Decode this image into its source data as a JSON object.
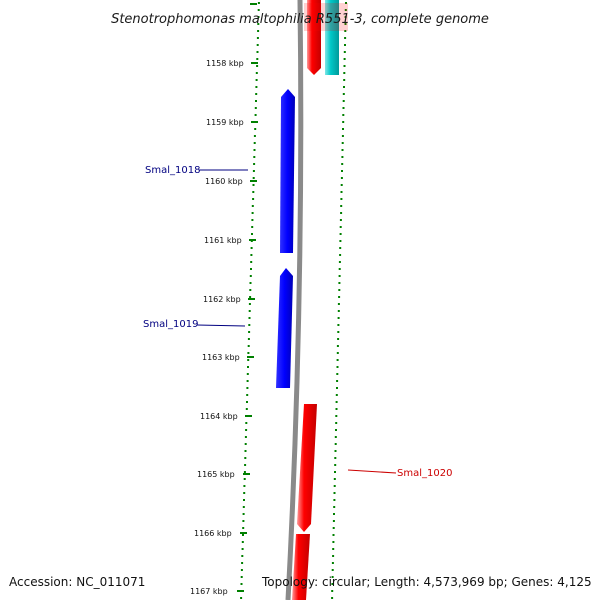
{
  "title": "Stenotrophomonas maltophilia R551-3, complete genome",
  "colors": {
    "forward_gene": "#0000ff",
    "reverse_gene": "#ff0000",
    "other_gene": "#00c8c8",
    "backbone": "#888888",
    "gc_dots": "#008000",
    "forward_label": "#000080",
    "reverse_label": "#cc0000"
  },
  "scale_ticks": [
    {
      "label": "1158 kbp",
      "value": 1158
    },
    {
      "label": "1159 kbp",
      "value": 1159
    },
    {
      "label": "1160 kbp",
      "value": 1160
    },
    {
      "label": "1161 kbp",
      "value": 1161
    },
    {
      "label": "1162 kbp",
      "value": 1162
    },
    {
      "label": "1163 kbp",
      "value": 1163
    },
    {
      "label": "1164 kbp",
      "value": 1164
    },
    {
      "label": "1165 kbp",
      "value": 1165
    },
    {
      "label": "1166 kbp",
      "value": 1166
    },
    {
      "label": "1167 kbp",
      "value": 1167
    }
  ],
  "genes": [
    {
      "name": "Smal_1018",
      "strand": "forward",
      "start_kbp": 1158.45,
      "end_kbp": 1161.2
    },
    {
      "name": "Smal_1019",
      "strand": "forward",
      "start_kbp": 1161.5,
      "end_kbp": 1163.5
    },
    {
      "name": "Smal_1020",
      "strand": "reverse",
      "start_kbp": 1163.8,
      "end_kbp": 1166.5
    }
  ],
  "footer": {
    "accession": "Accession: NC_011071",
    "topology": "Topology: circular; Length: 4,573,969 bp; Genes: 4,125"
  }
}
